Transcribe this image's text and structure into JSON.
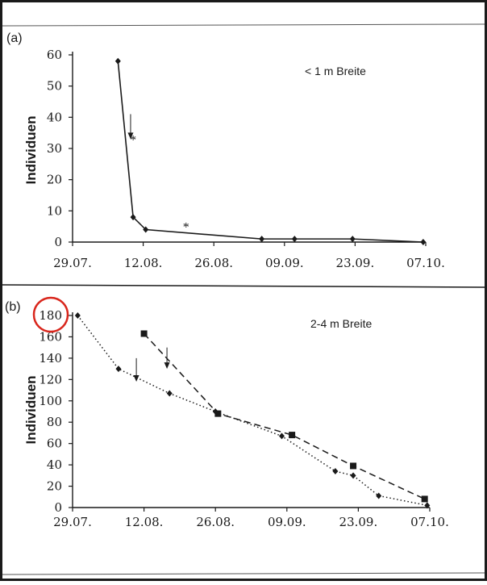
{
  "colors": {
    "ink": "#1a1a1a",
    "circle": "#d9261c"
  },
  "chart_data": [
    {
      "type": "line",
      "panel_label": "(a)",
      "legend_text": "< 1 m Breite",
      "ylabel": "Individuen",
      "ylim": [
        0,
        60
      ],
      "yticks": [
        "0",
        "10",
        "20",
        "30",
        "40",
        "50",
        "60"
      ],
      "xlim": [
        0,
        70
      ],
      "xticks": [
        {
          "label": "29.07.",
          "x": 0
        },
        {
          "label": "12.08.",
          "x": 14
        },
        {
          "label": "26.08.",
          "x": 28
        },
        {
          "label": "09.09.",
          "x": 42
        },
        {
          "label": "23.09.",
          "x": 56
        },
        {
          "label": "07.10.",
          "x": 70
        }
      ],
      "grid": false,
      "series": [
        {
          "style": "solid",
          "marker": "diamond",
          "x": [
            9,
            12,
            14.5,
            37.5,
            44,
            55.5,
            69.5
          ],
          "y": [
            58,
            8,
            4,
            1,
            1,
            1,
            0
          ]
        }
      ],
      "annotations": [
        {
          "text": "*",
          "x": 12,
          "y": 33
        },
        {
          "text": "*",
          "x": 22.5,
          "y": 5
        }
      ],
      "arrows": [
        {
          "x": 11.5,
          "y_from": 41,
          "y_to": 33
        }
      ]
    },
    {
      "type": "line",
      "panel_label": "(b)",
      "legend_text": "2-4 m Breite",
      "ylabel": "Individuen",
      "ylim": [
        0,
        180
      ],
      "yticks": [
        "0",
        "20",
        "40",
        "60",
        "80",
        "100",
        "120",
        "140",
        "160",
        "180"
      ],
      "xlim": [
        0,
        70
      ],
      "xticks": [
        {
          "label": "29.07.",
          "x": 0
        },
        {
          "label": "12.08.",
          "x": 14
        },
        {
          "label": "26.08.",
          "x": 28
        },
        {
          "label": "09.09.",
          "x": 42
        },
        {
          "label": "23.09.",
          "x": 56
        },
        {
          "label": "07.10.",
          "x": 70
        }
      ],
      "grid": false,
      "highlighted_tick": "180",
      "series": [
        {
          "style": "dotted",
          "marker": "diamond",
          "x": [
            1,
            9,
            19,
            28,
            41,
            51.5,
            55,
            60,
            69.5
          ],
          "y": [
            180,
            130,
            107,
            90,
            67,
            34,
            30,
            11,
            2
          ]
        },
        {
          "style": "dashed",
          "marker": "square",
          "x": [
            14,
            28.5,
            43,
            55,
            69
          ],
          "y": [
            163,
            88,
            68,
            39,
            8
          ]
        }
      ],
      "annotations": [],
      "arrows": [
        {
          "x": 12.5,
          "y_from": 140,
          "y_to": 118
        },
        {
          "x": 18.5,
          "y_from": 150,
          "y_to": 130
        }
      ]
    }
  ]
}
